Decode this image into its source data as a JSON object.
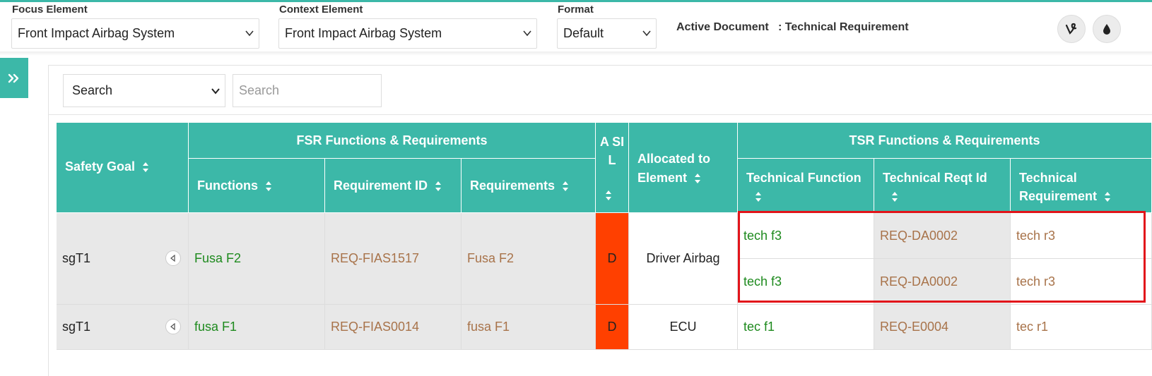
{
  "toolbar": {
    "focus": {
      "label": "Focus Element",
      "value": "Front Impact Airbag System"
    },
    "context": {
      "label": "Context Element",
      "value": "Front Impact Airbag System"
    },
    "format": {
      "label": "Format",
      "value": "Default"
    },
    "active_doc_label": "Active Document",
    "active_doc_value": ": Technical Requirement",
    "icons": [
      "vine-icon",
      "drop-icon"
    ]
  },
  "search": {
    "select_value": "Search",
    "input_placeholder": "Search"
  },
  "table": {
    "group_fsr": "FSR Functions & Requirements",
    "group_tsr": "TSR Functions & Requirements",
    "headers": {
      "safety_goal": "Safety Goal",
      "functions": "Functions",
      "req_id": "Requirement ID",
      "requirements": "Requirements",
      "asil": "A SI L",
      "allocated": "Allocated to Element",
      "tech_function": "Technical Function",
      "tech_reqt_id": "Technical Reqt Id",
      "tech_requirement": "Technical Requirement"
    },
    "rows": [
      {
        "safety_goal": "sgT1",
        "function": "Fusa F2",
        "req_id": "REQ-FIAS1517",
        "requirement": "Fusa F2",
        "asil": "D",
        "allocated": "Driver Airbag",
        "tech": [
          {
            "function": "tech f3",
            "reqt_id": "REQ-DA0002",
            "requirement": "tech r3"
          },
          {
            "function": "tech f3",
            "reqt_id": "REQ-DA0002",
            "requirement": "tech r3"
          }
        ]
      },
      {
        "safety_goal": "sgT1",
        "function": "fusa F1",
        "req_id": "REQ-FIAS0014",
        "requirement": "fusa F1",
        "asil": "D",
        "allocated": "ECU",
        "tech": [
          {
            "function": "tec f1",
            "reqt_id": "REQ-E0004",
            "requirement": "tec r1"
          }
        ]
      }
    ]
  },
  "colors": {
    "accent": "#3cb8a8",
    "asil_d": "#ff4000",
    "highlight_border": "#e2141a",
    "function_text": "#1e8a1e",
    "requirement_text": "#a8734a"
  }
}
